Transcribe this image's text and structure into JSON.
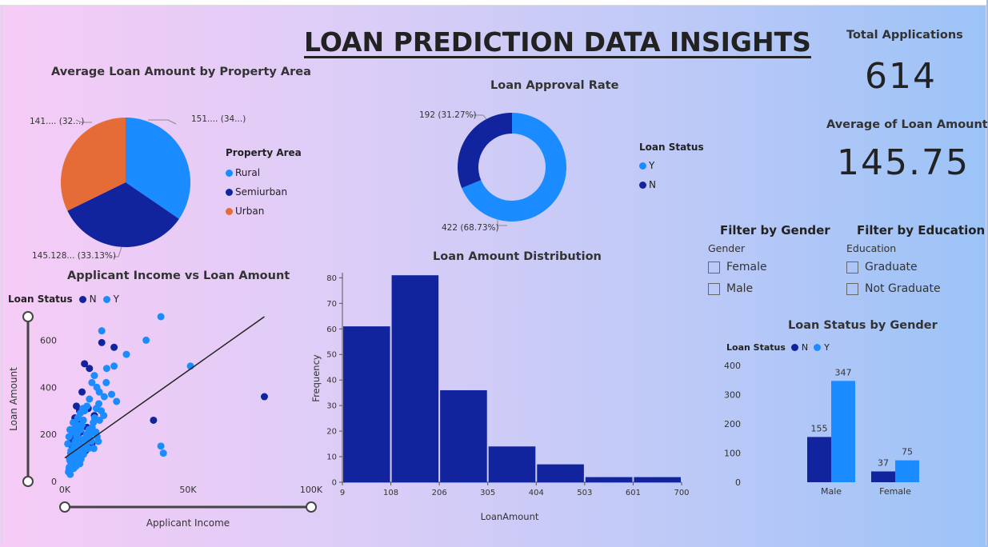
{
  "page": {
    "title": "LOAN PREDICTION DATA INSIGHTS"
  },
  "kpis": {
    "total_applications_label": "Total Applications",
    "total_applications_value": "614",
    "avg_loan_label": "Average of Loan Amount",
    "avg_loan_value": "145.75"
  },
  "colors": {
    "rural": "#1a8cff",
    "semiurban": "#12239e",
    "urban": "#e66c37",
    "status_n": "#12239e",
    "status_y": "#1a8cff",
    "hist_bar": "#12239e"
  },
  "filters": {
    "gender": {
      "title": "Filter by Gender",
      "field": "Gender",
      "options": [
        "Female",
        "Male"
      ]
    },
    "education": {
      "title": "Filter by Education",
      "field": "Education",
      "options": [
        "Graduate",
        "Not Graduate"
      ]
    }
  },
  "chart_data": [
    {
      "id": "pie-property-area",
      "type": "pie",
      "title": "Average Loan Amount by Property Area",
      "legend_title": "Property Area",
      "legend_position": "right",
      "slices": [
        {
          "name": "Rural",
          "value": 151,
          "label": "151.... (34...)"
        },
        {
          "name": "Semiurban",
          "value": 145.128,
          "label": "145.128... (33.13%)"
        },
        {
          "name": "Urban",
          "value": 141,
          "label": "141.... (32...)"
        }
      ]
    },
    {
      "id": "donut-approval",
      "type": "pie",
      "title": "Loan Approval Rate",
      "legend_title": "Loan Status",
      "legend_position": "right",
      "slices": [
        {
          "name": "Y",
          "value": 422,
          "label": "422 (68.73%)"
        },
        {
          "name": "N",
          "value": 192,
          "label": "192 (31.27%)"
        }
      ]
    },
    {
      "id": "scatter-income-loan",
      "type": "scatter",
      "title": "Applicant Income vs Loan Amount",
      "legend_title": "Loan Status",
      "legend": [
        "N",
        "Y"
      ],
      "xlabel": "Applicant Income",
      "ylabel": "Loan Amount",
      "x_ticks": [
        "0K",
        "50K",
        "100K"
      ],
      "y_ticks": [
        "0",
        "200",
        "400",
        "600"
      ],
      "xlim": [
        0,
        100000
      ],
      "ylim": [
        0,
        700
      ],
      "trendline": [
        [
          0,
          100
        ],
        [
          81000,
          700
        ]
      ],
      "series": [
        {
          "name": "N",
          "points": [
            [
              2500,
              120
            ],
            [
              3000,
              150
            ],
            [
              4000,
              180
            ],
            [
              2000,
              100
            ],
            [
              5000,
              250
            ],
            [
              6000,
              300
            ],
            [
              3500,
              130
            ],
            [
              4500,
              200
            ],
            [
              7000,
              380
            ],
            [
              8000,
              500
            ],
            [
              10000,
              480
            ],
            [
              12000,
              280
            ],
            [
              15000,
              590
            ],
            [
              20000,
              570
            ],
            [
              36000,
              260
            ],
            [
              81000,
              360
            ],
            [
              4200,
              140
            ],
            [
              3300,
              90
            ],
            [
              5800,
              170
            ],
            [
              6500,
              210
            ],
            [
              2800,
              60
            ],
            [
              9000,
              230
            ],
            [
              11000,
              160
            ],
            [
              3900,
              110
            ],
            [
              4700,
              320
            ],
            [
              2600,
              75
            ],
            [
              5200,
              190
            ],
            [
              6800,
              140
            ],
            [
              7500,
              260
            ],
            [
              1800,
              50
            ],
            [
              9500,
              310
            ],
            [
              3700,
              210
            ],
            [
              4100,
              270
            ],
            [
              2900,
              170
            ],
            [
              8400,
              130
            ]
          ]
        },
        {
          "name": "Y",
          "points": [
            [
              2500,
              130
            ],
            [
              3000,
              110
            ],
            [
              3500,
              140
            ],
            [
              4000,
              160
            ],
            [
              4500,
              120
            ],
            [
              5000,
              200
            ],
            [
              5500,
              180
            ],
            [
              6000,
              150
            ],
            [
              2000,
              90
            ],
            [
              2300,
              100
            ],
            [
              2700,
              115
            ],
            [
              3200,
              125
            ],
            [
              3800,
              145
            ],
            [
              4200,
              170
            ],
            [
              4800,
              190
            ],
            [
              5200,
              210
            ],
            [
              6500,
              220
            ],
            [
              7000,
              240
            ],
            [
              7500,
              260
            ],
            [
              8000,
              300
            ],
            [
              9000,
              320
            ],
            [
              10000,
              350
            ],
            [
              11000,
              420
            ],
            [
              12000,
              450
            ],
            [
              13000,
              400
            ],
            [
              14000,
              380
            ],
            [
              15000,
              640
            ],
            [
              16000,
              360
            ],
            [
              17000,
              480
            ],
            [
              19000,
              370
            ],
            [
              20000,
              490
            ],
            [
              21000,
              340
            ],
            [
              25000,
              540
            ],
            [
              33000,
              600
            ],
            [
              39000,
              700
            ],
            [
              51000,
              490
            ],
            [
              39000,
              150
            ],
            [
              40000,
              120
            ],
            [
              1500,
              40
            ],
            [
              1800,
              60
            ],
            [
              2200,
              30
            ],
            [
              2600,
              70
            ],
            [
              3100,
              80
            ],
            [
              3600,
              55
            ],
            [
              4100,
              95
            ],
            [
              4600,
              65
            ],
            [
              5100,
              85
            ],
            [
              5600,
              105
            ],
            [
              6100,
              75
            ],
            [
              6600,
              95
            ],
            [
              7100,
              125
            ],
            [
              7600,
              115
            ],
            [
              8100,
              135
            ],
            [
              8600,
              155
            ],
            [
              9100,
              170
            ],
            [
              9600,
              140
            ],
            [
              10100,
              185
            ],
            [
              10600,
              205
            ],
            [
              11100,
              230
            ],
            [
              11600,
              250
            ],
            [
              12100,
              270
            ],
            [
              12600,
              210
            ],
            [
              13100,
              190
            ],
            [
              13600,
              170
            ],
            [
              14100,
              260
            ],
            [
              4300,
              230
            ],
            [
              3400,
              250
            ],
            [
              2900,
              210
            ],
            [
              5300,
              270
            ],
            [
              6300,
              290
            ],
            [
              7300,
              310
            ],
            [
              1200,
              160
            ],
            [
              1700,
              190
            ],
            [
              2100,
              220
            ],
            [
              4900,
              240
            ],
            [
              5700,
              160
            ],
            [
              6200,
              130
            ],
            [
              6900,
              150
            ],
            [
              7800,
              180
            ],
            [
              8800,
              200
            ],
            [
              9800,
              220
            ],
            [
              10800,
              170
            ],
            [
              11800,
              140
            ],
            [
              12800,
              310
            ],
            [
              13800,
              330
            ],
            [
              14800,
              300
            ],
            [
              15800,
              280
            ],
            [
              16800,
              420
            ]
          ]
        }
      ]
    },
    {
      "id": "hist-loan-amount",
      "type": "bar",
      "title": "Loan Amount Distribution",
      "xlabel": "LoanAmount",
      "ylabel": "Frequency",
      "bin_edges": [
        9,
        108,
        206,
        305,
        404,
        503,
        601,
        700
      ],
      "x_tick_labels": [
        "9",
        "108",
        "206",
        "305",
        "404",
        "503",
        "601",
        "700"
      ],
      "values": [
        61,
        81,
        36,
        14,
        7,
        2,
        2
      ],
      "ylim": [
        0,
        82
      ],
      "y_ticks": [
        0,
        10,
        20,
        30,
        40,
        50,
        60,
        70,
        80
      ]
    },
    {
      "id": "bar-status-gender",
      "type": "bar",
      "title": "Loan Status by Gender",
      "legend_title": "Loan Status",
      "legend": [
        "N",
        "Y"
      ],
      "categories": [
        "Male",
        "Female"
      ],
      "series": [
        {
          "name": "N",
          "values": [
            155,
            37
          ]
        },
        {
          "name": "Y",
          "values": [
            347,
            75
          ]
        }
      ],
      "ylim": [
        0,
        400
      ],
      "y_ticks": [
        0,
        100,
        200,
        300,
        400
      ]
    }
  ]
}
